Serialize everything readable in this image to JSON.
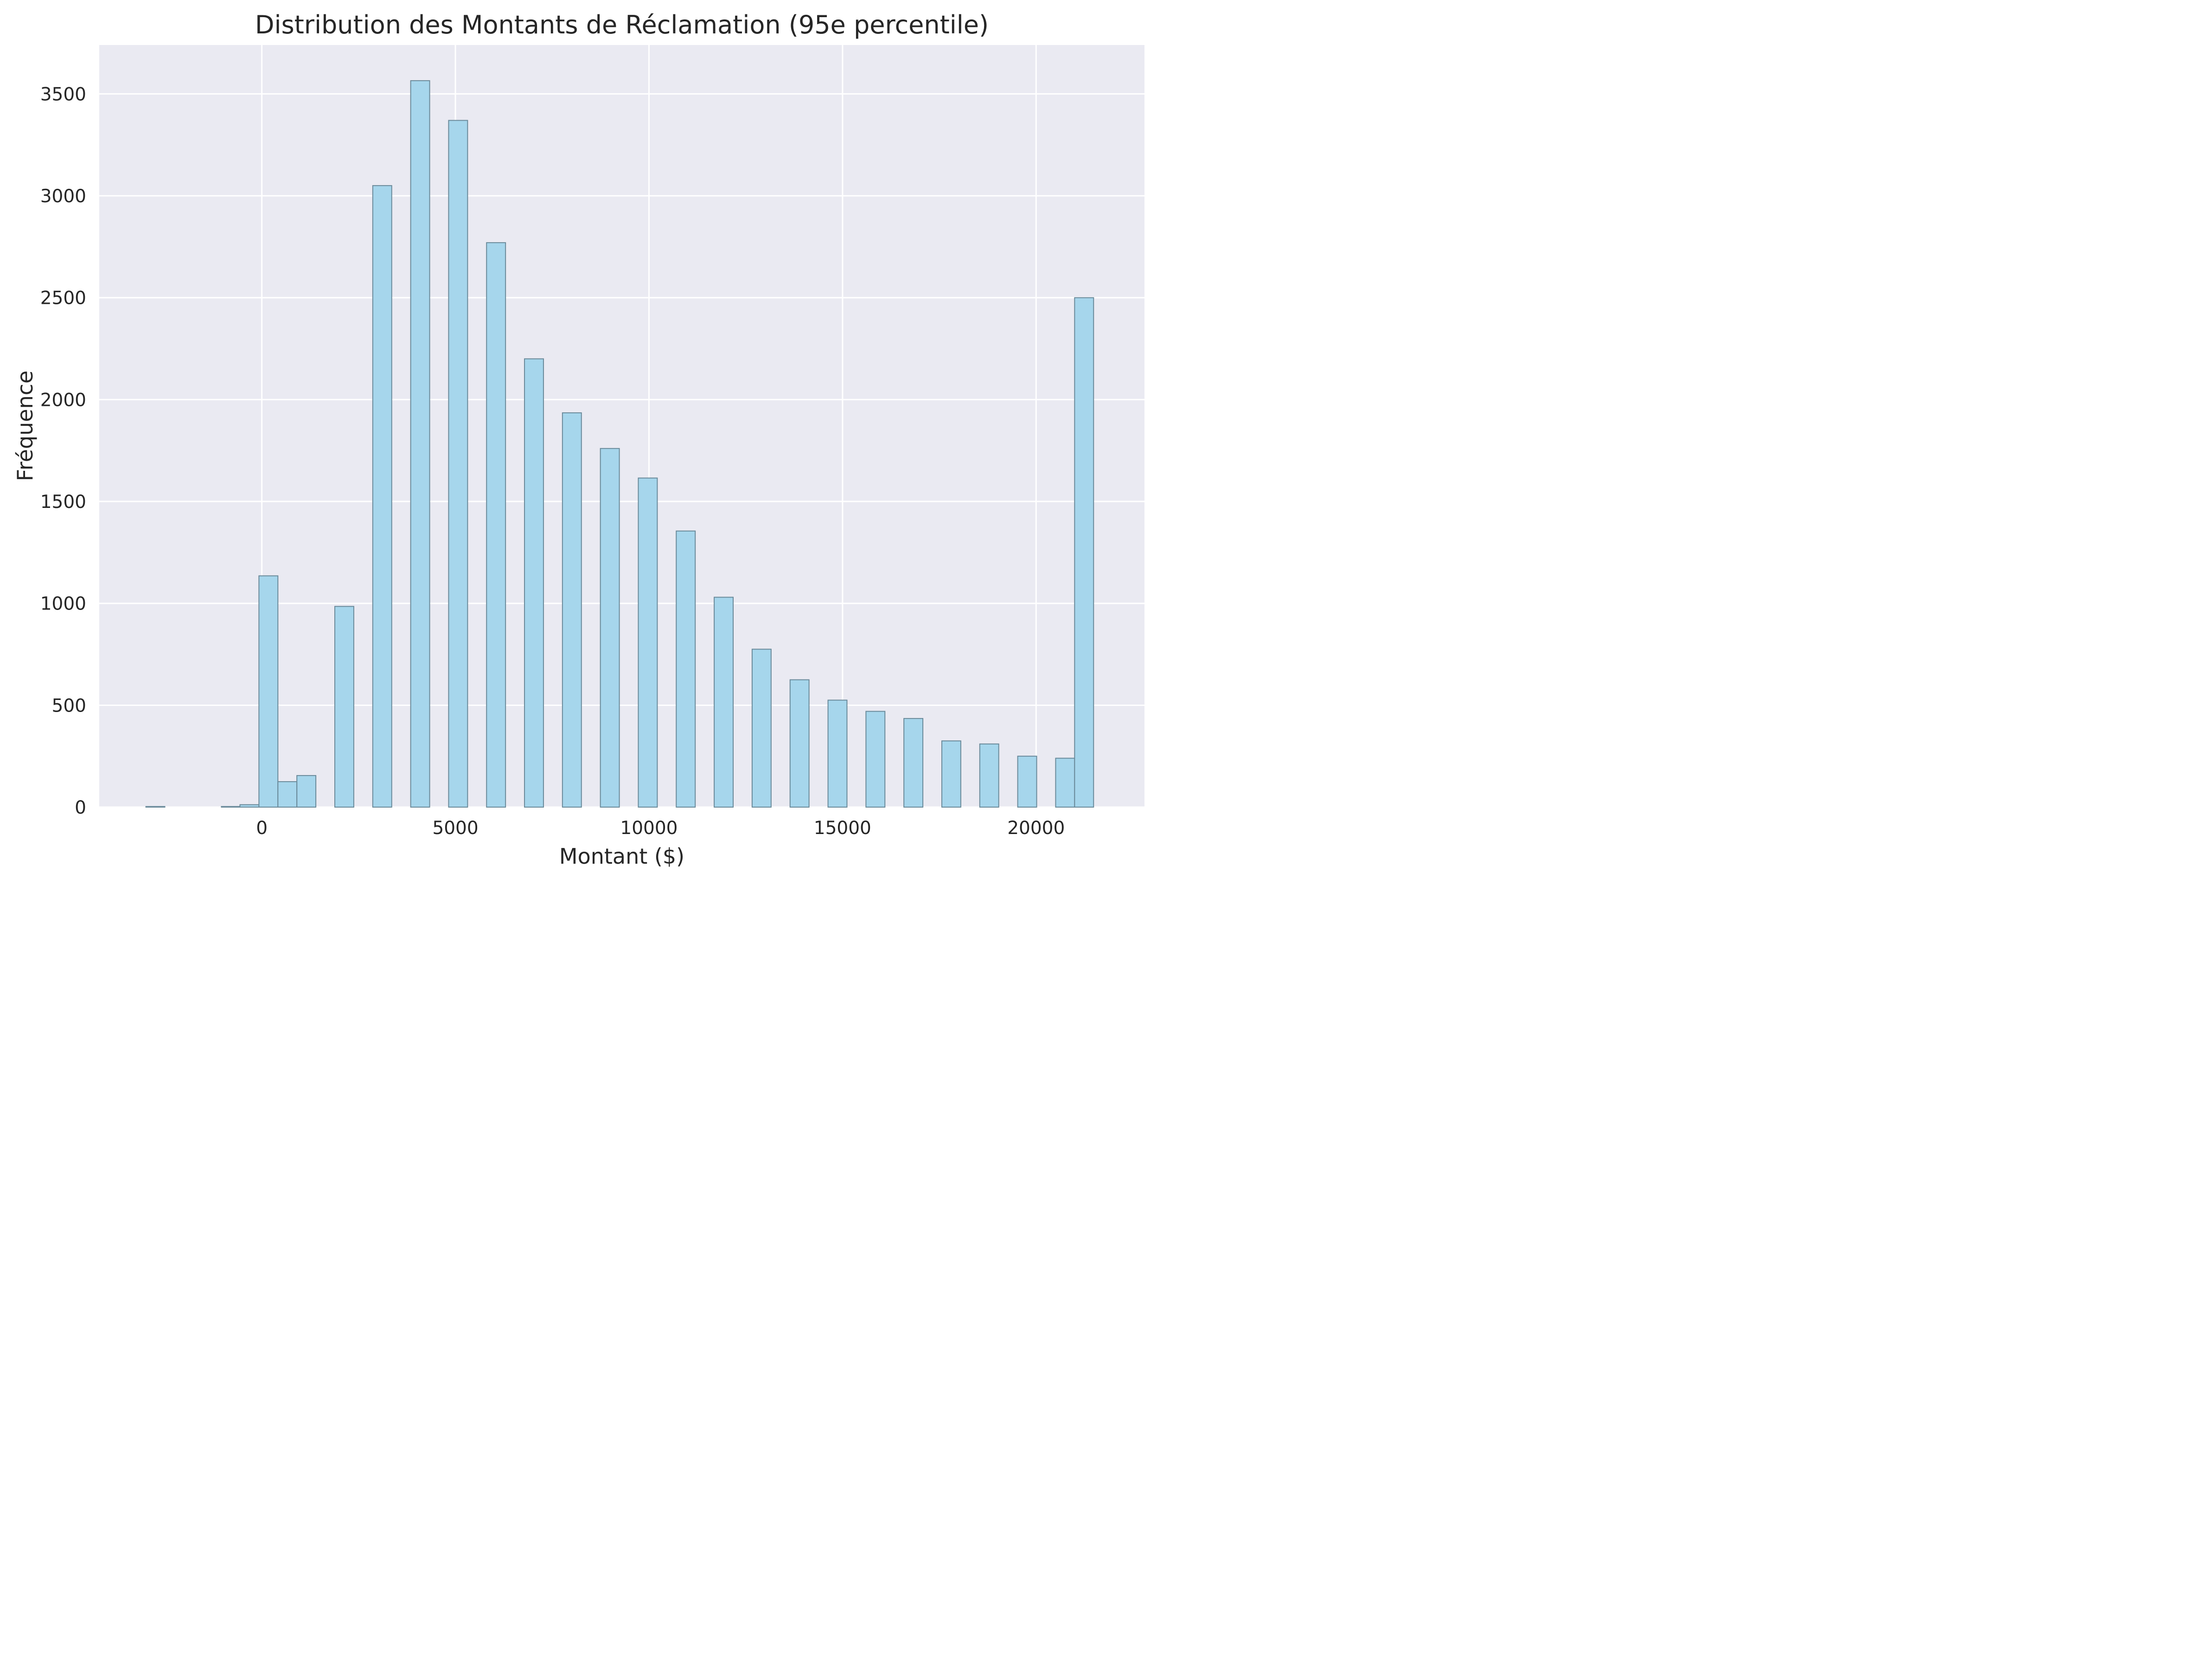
{
  "chart_data": {
    "type": "bar",
    "title": "Distribution des Montants de Réclamation (95e percentile)",
    "xlabel": "Montant ($)",
    "ylabel": "Fréquence",
    "xlim": [
      -4200,
      22800
    ],
    "ylim": [
      0,
      3740
    ],
    "x_ticks": [
      0,
      5000,
      10000,
      15000,
      20000
    ],
    "y_ticks": [
      0,
      500,
      1000,
      1500,
      2000,
      2500,
      3000,
      3500
    ],
    "bin_width": 490,
    "grid": true,
    "legend": "none",
    "colors": {
      "bar_fill": "#a6d6ec",
      "bar_edge": "#6a8a9a",
      "plot_background": "#eaeaf2",
      "grid": "#ffffff",
      "text": "#262626"
    },
    "bins": [
      {
        "x": -2750,
        "count": 3
      },
      {
        "x": -800,
        "count": 3
      },
      {
        "x": -320,
        "count": 12
      },
      {
        "x": 170,
        "count": 1135
      },
      {
        "x": 660,
        "count": 125
      },
      {
        "x": 1150,
        "count": 155
      },
      {
        "x": 2130,
        "count": 985
      },
      {
        "x": 3110,
        "count": 3050
      },
      {
        "x": 4090,
        "count": 3565
      },
      {
        "x": 5070,
        "count": 3370
      },
      {
        "x": 6050,
        "count": 2770
      },
      {
        "x": 7030,
        "count": 2200
      },
      {
        "x": 8010,
        "count": 1935
      },
      {
        "x": 8990,
        "count": 1760
      },
      {
        "x": 9970,
        "count": 1615
      },
      {
        "x": 10950,
        "count": 1355
      },
      {
        "x": 11930,
        "count": 1030
      },
      {
        "x": 12910,
        "count": 775
      },
      {
        "x": 13890,
        "count": 625
      },
      {
        "x": 14870,
        "count": 525
      },
      {
        "x": 15850,
        "count": 470
      },
      {
        "x": 16830,
        "count": 435
      },
      {
        "x": 17810,
        "count": 325
      },
      {
        "x": 18790,
        "count": 310
      },
      {
        "x": 19770,
        "count": 250
      },
      {
        "x": 20750,
        "count": 240
      },
      {
        "x": 21240,
        "count": 2500
      }
    ]
  }
}
